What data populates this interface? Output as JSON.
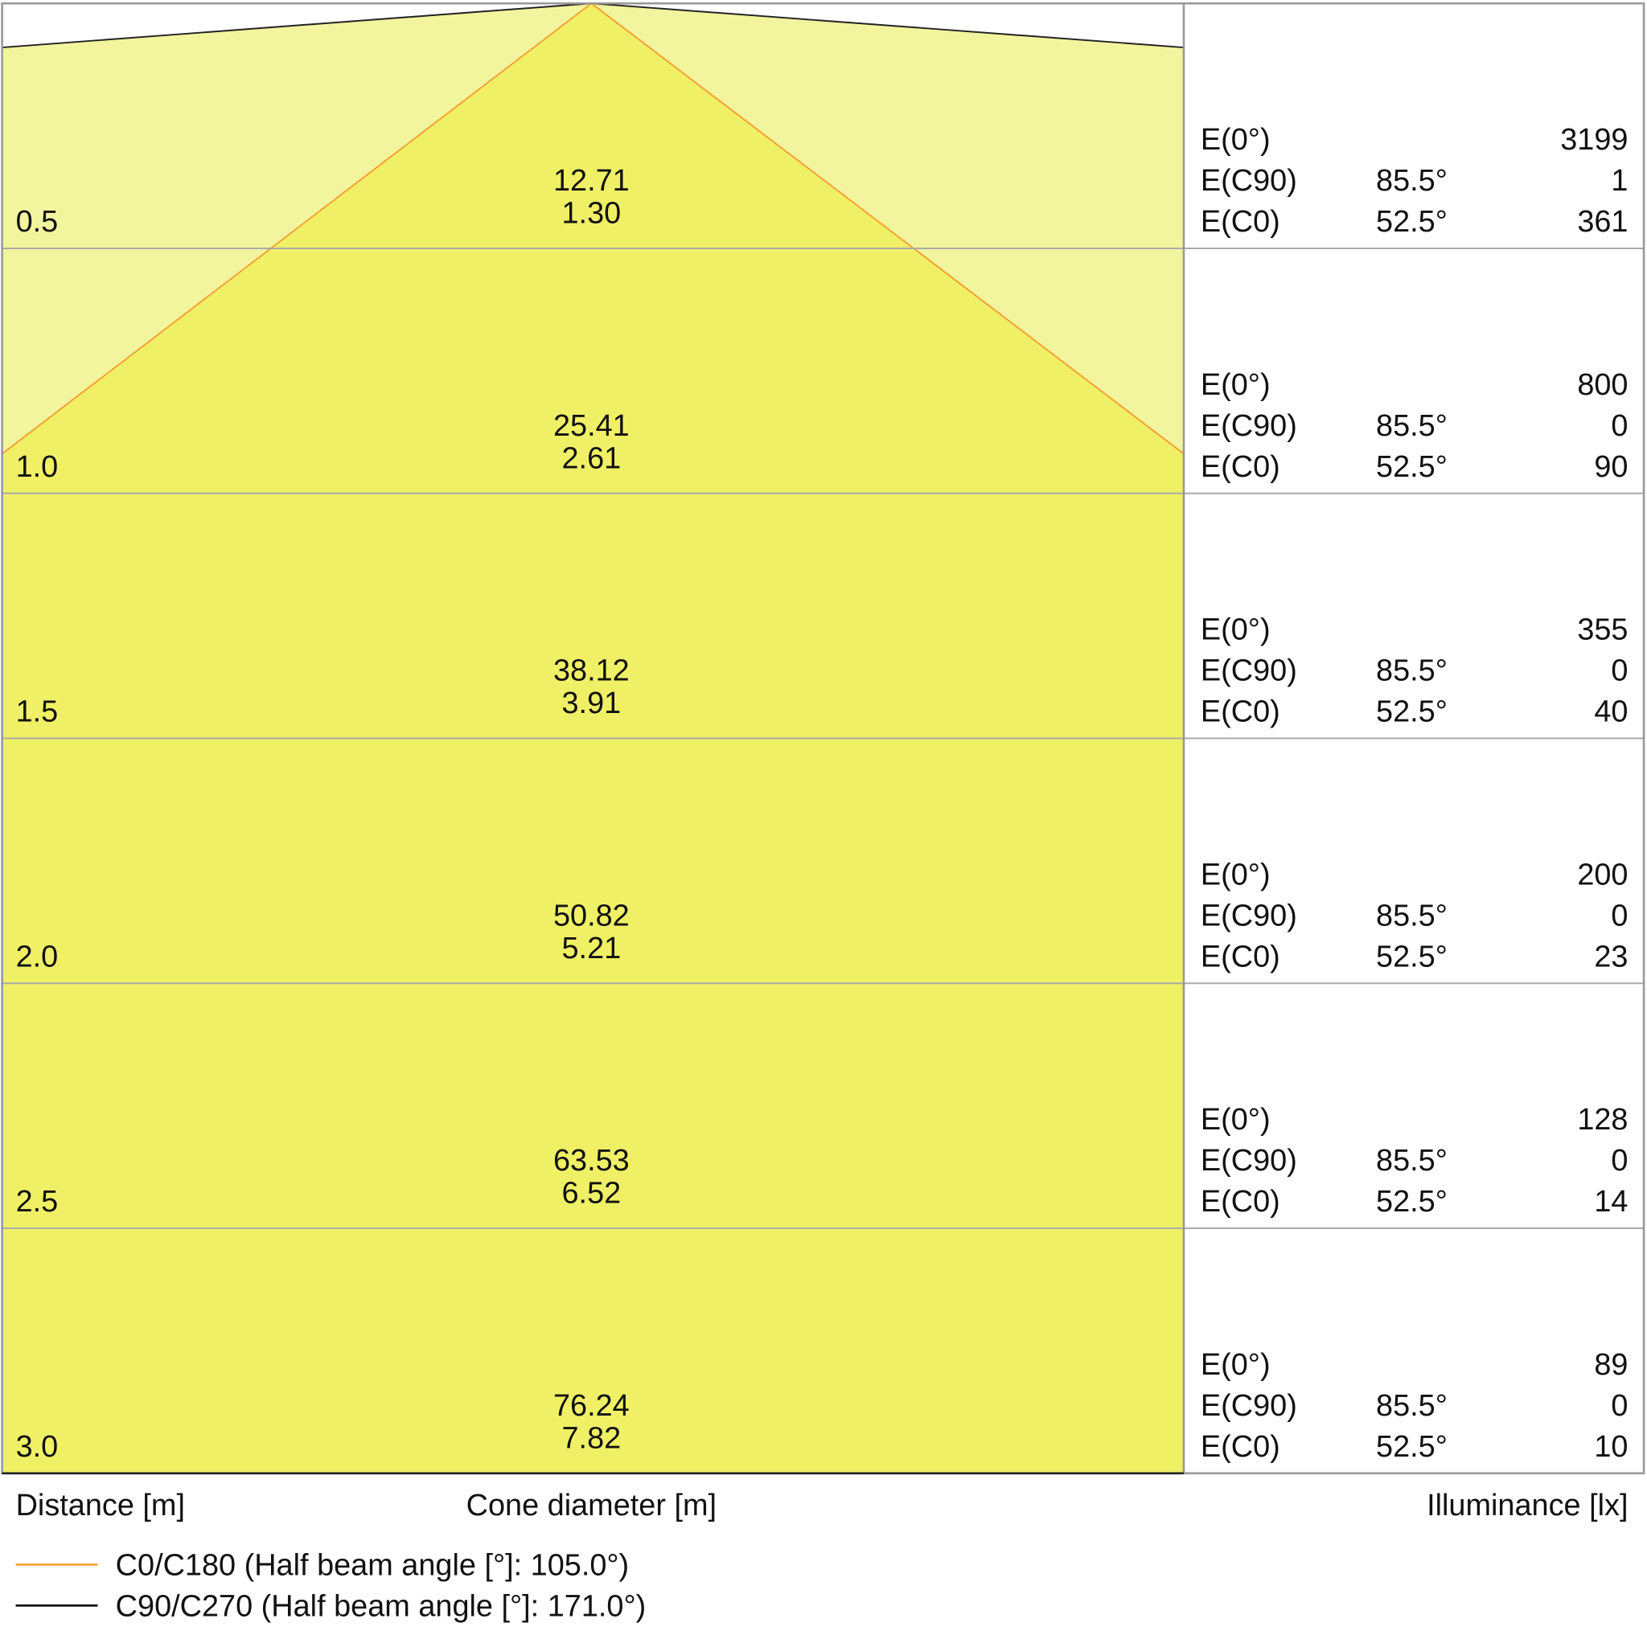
{
  "rows": [
    {
      "distance": "0.5",
      "cone": [
        "12.71",
        "1.30"
      ],
      "illuminance": [
        {
          "label": "E(0°)",
          "value": "3199"
        },
        {
          "label": "E(C90)",
          "angle": "85.5°",
          "value": "1"
        },
        {
          "label": "E(C0)",
          "angle": "52.5°",
          "value": "361"
        }
      ]
    },
    {
      "distance": "1.0",
      "cone": [
        "25.41",
        "2.61"
      ],
      "illuminance": [
        {
          "label": "E(0°)",
          "value": "800"
        },
        {
          "label": "E(C90)",
          "angle": "85.5°",
          "value": "0"
        },
        {
          "label": "E(C0)",
          "angle": "52.5°",
          "value": "90"
        }
      ]
    },
    {
      "distance": "1.5",
      "cone": [
        "38.12",
        "3.91"
      ],
      "illuminance": [
        {
          "label": "E(0°)",
          "value": "355"
        },
        {
          "label": "E(C90)",
          "angle": "85.5°",
          "value": "0"
        },
        {
          "label": "E(C0)",
          "angle": "52.5°",
          "value": "40"
        }
      ]
    },
    {
      "distance": "2.0",
      "cone": [
        "50.82",
        "5.21"
      ],
      "illuminance": [
        {
          "label": "E(0°)",
          "value": "200"
        },
        {
          "label": "E(C90)",
          "angle": "85.5°",
          "value": "0"
        },
        {
          "label": "E(C0)",
          "angle": "52.5°",
          "value": "23"
        }
      ]
    },
    {
      "distance": "2.5",
      "cone": [
        "63.53",
        "6.52"
      ],
      "illuminance": [
        {
          "label": "E(0°)",
          "value": "128"
        },
        {
          "label": "E(C90)",
          "angle": "85.5°",
          "value": "0"
        },
        {
          "label": "E(C0)",
          "angle": "52.5°",
          "value": "14"
        }
      ]
    },
    {
      "distance": "3.0",
      "cone": [
        "76.24",
        "7.82"
      ],
      "illuminance": [
        {
          "label": "E(0°)",
          "value": "89"
        },
        {
          "label": "E(C90)",
          "angle": "85.5°",
          "value": "0"
        },
        {
          "label": "E(C0)",
          "angle": "52.5°",
          "value": "10"
        }
      ]
    }
  ],
  "footer": {
    "distance": "Distance [m]",
    "cone": "Cone diameter [m]",
    "illuminance": "Illuminance [lx]"
  },
  "legend": [
    {
      "label": "C0/C180 (Half beam angle [°]: 105.0°)",
      "color": "#f5a033"
    },
    {
      "label": "C90/C270 (Half beam angle [°]: 171.0°)",
      "color": "#000000"
    }
  ]
}
